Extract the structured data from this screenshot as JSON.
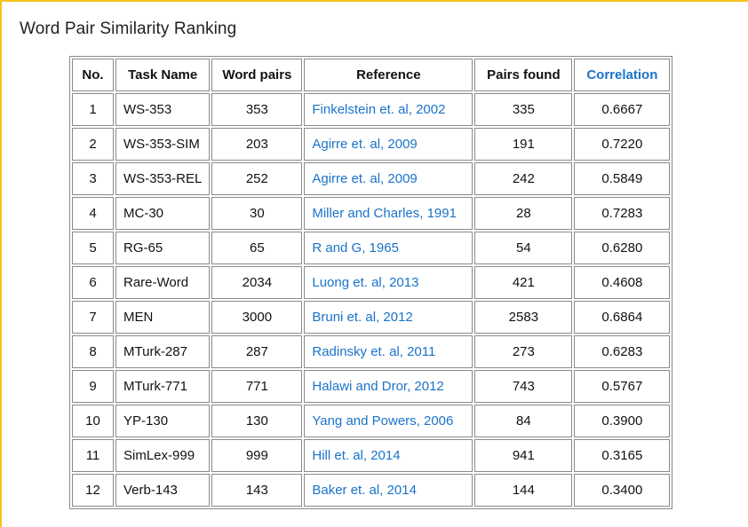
{
  "page": {
    "title": "Word Pair Similarity Ranking"
  },
  "colors": {
    "accent": "#f5c518",
    "link": "#1a73c9",
    "border": "#8a8a8a"
  },
  "table": {
    "headers": {
      "no": "No.",
      "task_name": "Task Name",
      "word_pairs": "Word pairs",
      "reference": "Reference",
      "pairs_found": "Pairs found",
      "correlation": "Correlation"
    },
    "rows": [
      {
        "no": "1",
        "task": "WS-353",
        "pairs": "353",
        "reference": "Finkelstein et. al, 2002",
        "found": "335",
        "correlation": "0.6667"
      },
      {
        "no": "2",
        "task": "WS-353-SIM",
        "pairs": "203",
        "reference": "Agirre et. al, 2009",
        "found": "191",
        "correlation": "0.7220"
      },
      {
        "no": "3",
        "task": "WS-353-REL",
        "pairs": "252",
        "reference": "Agirre et. al, 2009",
        "found": "242",
        "correlation": "0.5849"
      },
      {
        "no": "4",
        "task": "MC-30",
        "pairs": "30",
        "reference": "Miller and Charles, 1991",
        "found": "28",
        "correlation": "0.7283"
      },
      {
        "no": "5",
        "task": "RG-65",
        "pairs": "65",
        "reference": "R and G, 1965",
        "found": "54",
        "correlation": "0.6280"
      },
      {
        "no": "6",
        "task": "Rare-Word",
        "pairs": "2034",
        "reference": "Luong et. al, 2013",
        "found": "421",
        "correlation": "0.4608"
      },
      {
        "no": "7",
        "task": "MEN",
        "pairs": "3000",
        "reference": "Bruni et. al, 2012",
        "found": "2583",
        "correlation": "0.6864"
      },
      {
        "no": "8",
        "task": "MTurk-287",
        "pairs": "287",
        "reference": "Radinsky et. al, 2011",
        "found": "273",
        "correlation": "0.6283"
      },
      {
        "no": "9",
        "task": "MTurk-771",
        "pairs": "771",
        "reference": "Halawi and Dror, 2012",
        "found": "743",
        "correlation": "0.5767"
      },
      {
        "no": "10",
        "task": "YP-130",
        "pairs": "130",
        "reference": "Yang and Powers, 2006",
        "found": "84",
        "correlation": "0.3900"
      },
      {
        "no": "11",
        "task": "SimLex-999",
        "pairs": "999",
        "reference": "Hill et. al, 2014",
        "found": "941",
        "correlation": "0.3165"
      },
      {
        "no": "12",
        "task": "Verb-143",
        "pairs": "143",
        "reference": "Baker et. al, 2014",
        "found": "144",
        "correlation": "0.3400"
      }
    ]
  }
}
